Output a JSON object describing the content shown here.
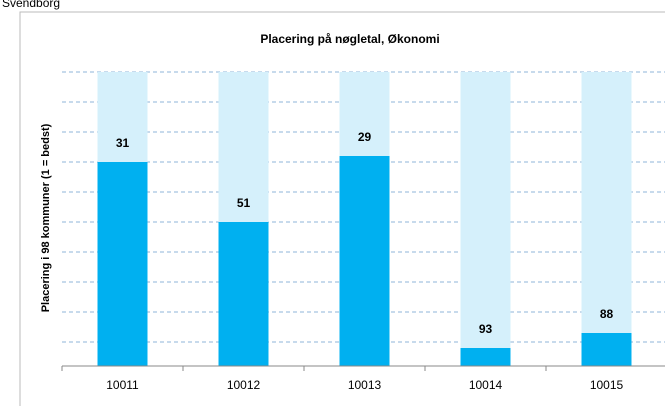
{
  "chart_data": {
    "type": "bar",
    "header": "Svendborg",
    "title": "Placering på nøgletal, Økonomi",
    "y_label": "Placering i 98 kommuner (1 = bedst)",
    "categories": [
      "10011",
      "10012",
      "10013",
      "10014",
      "10015"
    ],
    "values": [
      31,
      51,
      29,
      93,
      88
    ],
    "color": "#00b0f0",
    "background_color": "#d5f0fb",
    "ylim": [
      99,
      1
    ],
    "yticks": [
      1,
      11,
      21,
      31,
      41,
      51,
      61,
      71,
      81,
      91
    ],
    "grid": true
  }
}
